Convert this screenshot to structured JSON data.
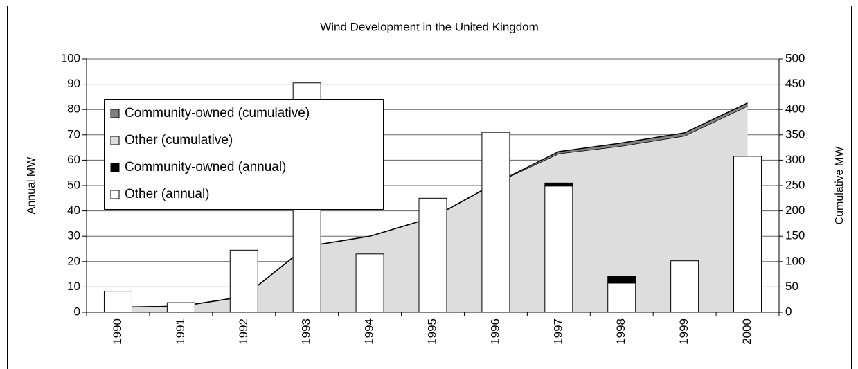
{
  "chart_data": {
    "type": "bar",
    "title": "Wind Development in the United Kingdom",
    "ylabel": "Annual MW",
    "y2label": "Cumulative MW",
    "categories": [
      "1990",
      "1991",
      "1992",
      "1993",
      "1994",
      "1995",
      "1996",
      "1997",
      "1998",
      "1999",
      "2000"
    ],
    "series": [
      {
        "name": "Community-owned (cumulative)",
        "type": "area",
        "axis": "y2",
        "color": "#808080",
        "values": [
          0,
          0,
          0,
          0,
          0,
          0,
          0,
          4,
          6,
          6,
          6
        ]
      },
      {
        "name": "Other (cumulative)",
        "type": "area",
        "axis": "y2",
        "color": "#dddddd",
        "values": [
          10,
          12,
          31,
          130,
          150,
          187,
          255,
          313,
          328,
          348,
          407
        ]
      },
      {
        "name": "Community-owned (annual)",
        "type": "bar",
        "color": "#000000",
        "values": [
          0,
          0,
          0,
          0,
          0,
          0,
          0,
          1.2,
          2.8,
          0,
          0
        ]
      },
      {
        "name": "Other (annual)",
        "type": "bar",
        "color": "#ffffff",
        "values": [
          8.3,
          3.8,
          24.5,
          90.5,
          23,
          45,
          71,
          49.8,
          11.5,
          20.3,
          61.5
        ]
      }
    ],
    "ylim": [
      0,
      100
    ],
    "yticks": [
      0,
      10,
      20,
      30,
      40,
      50,
      60,
      70,
      80,
      90,
      100
    ],
    "y2lim": [
      0,
      500
    ],
    "y2ticks": [
      0,
      50,
      100,
      150,
      200,
      250,
      300,
      350,
      400,
      450,
      500
    ],
    "grid": true,
    "legend": "upper left"
  }
}
